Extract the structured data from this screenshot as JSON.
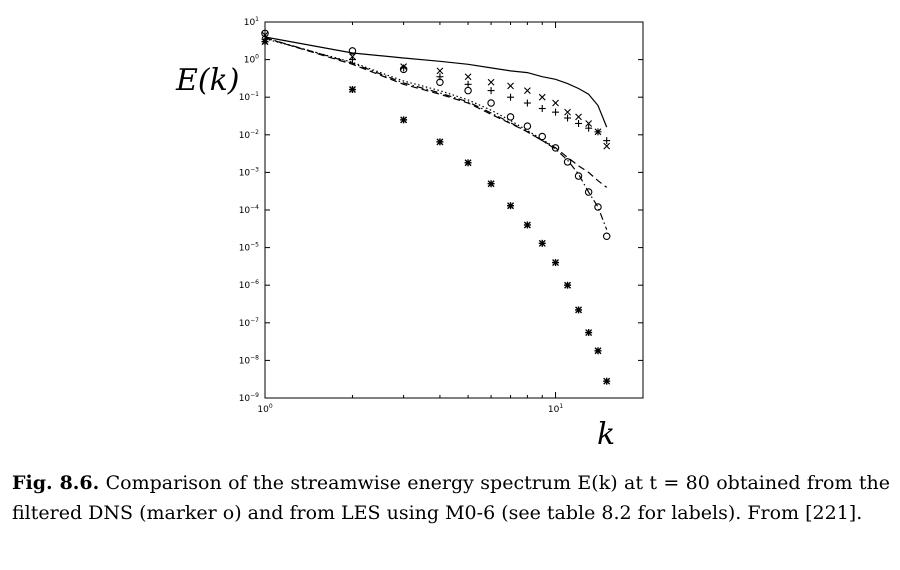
{
  "chart_data": {
    "type": "scatter",
    "x_scale": "log",
    "y_scale": "log",
    "xlim": [
      1,
      20
    ],
    "ylim": [
      1e-09,
      10
    ],
    "xlabel": "k",
    "ylabel": "E(k)",
    "x_ticks": [
      1,
      10
    ],
    "y_ticks": [
      1e-09,
      1e-08,
      1e-07,
      1e-06,
      1e-05,
      0.0001,
      0.001,
      0.01,
      0.1,
      1,
      10
    ],
    "grid": false,
    "series": [
      {
        "style": "solid-line",
        "x": [
          1,
          2,
          3,
          4,
          5,
          6,
          7,
          8,
          9,
          10,
          11,
          12,
          13,
          14,
          15
        ],
        "y": [
          4.0,
          1.5,
          1.1,
          0.9,
          0.75,
          0.6,
          0.5,
          0.45,
          0.35,
          0.3,
          0.23,
          0.17,
          0.12,
          0.06,
          0.016
        ]
      },
      {
        "style": "dashed-line",
        "x": [
          1,
          2,
          3,
          4,
          5,
          6,
          7,
          8,
          9,
          10,
          11,
          12,
          13,
          14,
          15
        ],
        "y": [
          3.8,
          0.75,
          0.22,
          0.12,
          0.07,
          0.035,
          0.02,
          0.012,
          0.007,
          0.0045,
          0.0025,
          0.0015,
          0.001,
          0.0006,
          0.0004
        ]
      },
      {
        "style": "dash-dot-line",
        "x": [
          1,
          2,
          3,
          4,
          5,
          6,
          7,
          8,
          9,
          10,
          11,
          12,
          13,
          14,
          15
        ],
        "y": [
          3.8,
          0.8,
          0.24,
          0.13,
          0.075,
          0.038,
          0.021,
          0.012,
          0.007,
          0.0042,
          0.0021,
          0.0009,
          0.0003,
          0.00012,
          3e-05
        ]
      },
      {
        "style": "dotted-line",
        "x": [
          1,
          2,
          3,
          4,
          5,
          6,
          7,
          8,
          9,
          10
        ],
        "y": [
          3.6,
          0.85,
          0.27,
          0.15,
          0.085,
          0.045,
          0.024,
          0.013,
          0.0075,
          0.0045
        ]
      },
      {
        "style": "marker-o",
        "x": [
          1,
          2,
          3,
          4,
          5,
          6,
          7,
          8,
          9,
          10,
          11,
          12,
          13,
          14,
          15
        ],
        "y": [
          5.0,
          1.7,
          0.55,
          0.25,
          0.15,
          0.07,
          0.03,
          0.017,
          0.009,
          0.0045,
          0.0019,
          0.0008,
          0.0003,
          0.00012,
          2e-05
        ]
      },
      {
        "style": "marker-x",
        "x": [
          1,
          2,
          3,
          4,
          5,
          6,
          7,
          8,
          9,
          10,
          11,
          12,
          13,
          14,
          15
        ],
        "y": [
          4.5,
          1.2,
          0.65,
          0.5,
          0.35,
          0.25,
          0.2,
          0.15,
          0.1,
          0.07,
          0.04,
          0.03,
          0.02,
          0.012,
          0.005
        ]
      },
      {
        "style": "marker-plus",
        "x": [
          1,
          2,
          3,
          4,
          5,
          6,
          7,
          8,
          9,
          10,
          11,
          12,
          13,
          14,
          15
        ],
        "y": [
          3.5,
          1.0,
          0.6,
          0.35,
          0.22,
          0.15,
          0.1,
          0.07,
          0.05,
          0.04,
          0.028,
          0.02,
          0.015,
          0.012,
          0.007
        ]
      },
      {
        "style": "marker-star",
        "x": [
          1,
          2,
          3,
          4,
          5,
          6,
          7,
          8,
          9,
          10,
          11,
          12,
          13,
          14,
          15
        ],
        "y": [
          3.0,
          0.16,
          0.025,
          0.0065,
          0.0018,
          0.0005,
          0.00013,
          4e-05,
          1.3e-05,
          4e-06,
          1e-06,
          2.2e-07,
          5.5e-08,
          1.8e-08,
          2.8e-09
        ]
      }
    ]
  },
  "caption": {
    "label": "Fig. 8.6.",
    "text": "Comparison of the streamwise energy spectrum E(k) at t = 80 obtained from the filtered DNS (marker o) and from LES using M0-6 (see table 8.2 for labels). From [221]."
  }
}
